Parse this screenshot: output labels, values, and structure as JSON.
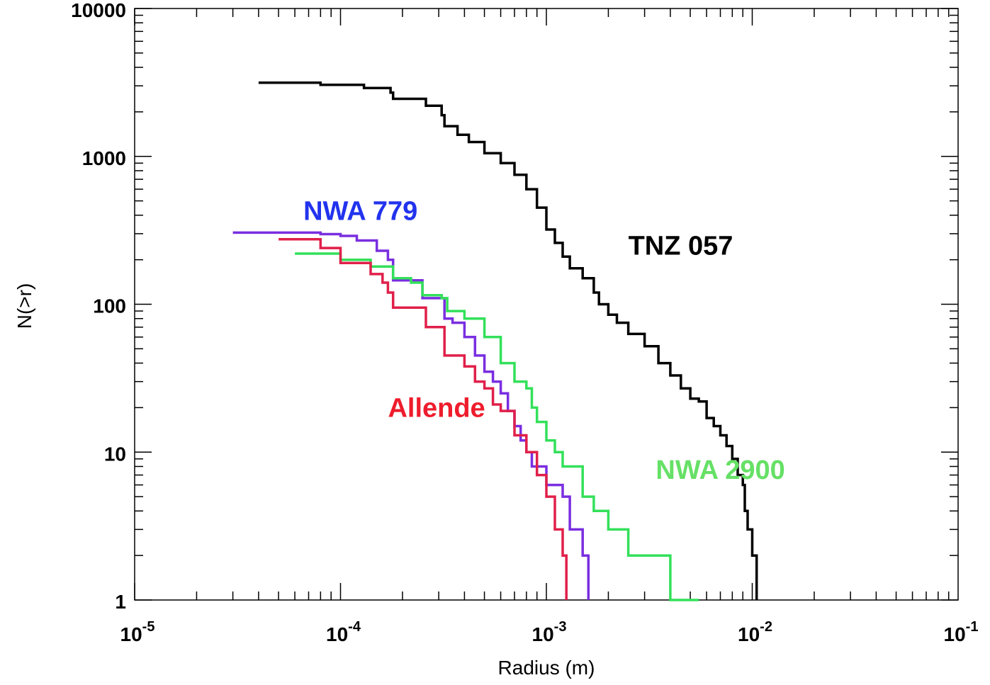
{
  "chart_data": {
    "type": "line",
    "xlabel": "Radius (m)",
    "ylabel": "N(>r)",
    "xscale": "log",
    "yscale": "log",
    "xlim": [
      1e-05,
      0.1
    ],
    "ylim": [
      1,
      10000
    ],
    "x_ticks": [
      {
        "value": 1e-05,
        "base": "10",
        "exp": "-5"
      },
      {
        "value": 0.0001,
        "base": "10",
        "exp": "-4"
      },
      {
        "value": 0.001,
        "base": "10",
        "exp": "-3"
      },
      {
        "value": 0.01,
        "base": "10",
        "exp": "-2"
      },
      {
        "value": 0.1,
        "base": "10",
        "exp": "-1"
      }
    ],
    "y_ticks": [
      {
        "value": 1,
        "label": "1"
      },
      {
        "value": 10,
        "label": "10"
      },
      {
        "value": 100,
        "label": "100"
      },
      {
        "value": 1000,
        "label": "1000"
      },
      {
        "value": 10000,
        "label": "10000"
      }
    ],
    "grid": false,
    "series": [
      {
        "name": "TNZ 057",
        "color": "#000000",
        "points": [
          [
            4e-05,
            3150
          ],
          [
            8e-05,
            3050
          ],
          [
            0.00013,
            2900
          ],
          [
            0.000175,
            2700
          ],
          [
            0.00018,
            2450
          ],
          [
            0.00025,
            2450
          ],
          [
            0.00026,
            2200
          ],
          [
            0.00031,
            1900
          ],
          [
            0.00032,
            1600
          ],
          [
            0.00036,
            1600
          ],
          [
            0.00037,
            1400
          ],
          [
            0.00042,
            1250
          ],
          [
            0.0005,
            1050
          ],
          [
            0.0006,
            900
          ],
          [
            0.0007,
            750
          ],
          [
            0.0008,
            600
          ],
          [
            0.0009,
            450
          ],
          [
            0.001,
            320
          ],
          [
            0.0011,
            260
          ],
          [
            0.0012,
            210
          ],
          [
            0.0013,
            175
          ],
          [
            0.0015,
            150
          ],
          [
            0.0017,
            120
          ],
          [
            0.0018,
            100
          ],
          [
            0.002,
            85
          ],
          [
            0.0022,
            75
          ],
          [
            0.0025,
            63
          ],
          [
            0.003,
            52
          ],
          [
            0.0035,
            40
          ],
          [
            0.004,
            33
          ],
          [
            0.0045,
            27
          ],
          [
            0.005,
            23
          ],
          [
            0.0055,
            22
          ],
          [
            0.006,
            17
          ],
          [
            0.0065,
            15
          ],
          [
            0.007,
            13
          ],
          [
            0.0075,
            11
          ],
          [
            0.008,
            9
          ],
          [
            0.0085,
            7
          ],
          [
            0.009,
            6
          ],
          [
            0.0092,
            4
          ],
          [
            0.0095,
            3
          ],
          [
            0.01,
            2
          ],
          [
            0.0105,
            1
          ]
        ]
      },
      {
        "name": "NWA 779",
        "color": "#7a2ee0",
        "points": [
          [
            3e-05,
            305
          ],
          [
            8e-05,
            298
          ],
          [
            0.0001,
            290
          ],
          [
            0.00012,
            270
          ],
          [
            0.00015,
            230
          ],
          [
            0.00017,
            200
          ],
          [
            0.00018,
            145
          ],
          [
            0.0002,
            145
          ],
          [
            0.00025,
            110
          ],
          [
            0.0003,
            110
          ],
          [
            0.00032,
            80
          ],
          [
            0.00035,
            75
          ],
          [
            0.0004,
            60
          ],
          [
            0.00045,
            45
          ],
          [
            0.0005,
            35
          ],
          [
            0.00055,
            30
          ],
          [
            0.0006,
            25
          ],
          [
            0.00065,
            19
          ],
          [
            0.0007,
            15
          ],
          [
            0.00075,
            12
          ],
          [
            0.0008,
            10
          ],
          [
            0.00085,
            8
          ],
          [
            0.001,
            6
          ],
          [
            0.0012,
            5
          ],
          [
            0.0013,
            3
          ],
          [
            0.0015,
            2
          ],
          [
            0.0016,
            1
          ]
        ]
      },
      {
        "name": "NWA 2900",
        "color": "#33e05a",
        "points": [
          [
            6e-05,
            220
          ],
          [
            7e-05,
            220
          ],
          [
            0.0001,
            200
          ],
          [
            0.00014,
            180
          ],
          [
            0.00018,
            150
          ],
          [
            0.00022,
            140
          ],
          [
            0.00025,
            115
          ],
          [
            0.00031,
            110
          ],
          [
            0.00033,
            90
          ],
          [
            0.0004,
            80
          ],
          [
            0.0005,
            60
          ],
          [
            0.0006,
            40
          ],
          [
            0.0007,
            30
          ],
          [
            0.0008,
            27
          ],
          [
            0.00085,
            20
          ],
          [
            0.0009,
            16
          ],
          [
            0.001,
            12
          ],
          [
            0.0011,
            10
          ],
          [
            0.0012,
            8
          ],
          [
            0.0015,
            5
          ],
          [
            0.0017,
            4
          ],
          [
            0.002,
            3
          ],
          [
            0.0025,
            2
          ],
          [
            0.004,
            1
          ],
          [
            0.0055,
            1
          ]
        ]
      },
      {
        "name": "Allende",
        "color": "#e0204a",
        "points": [
          [
            5e-05,
            275
          ],
          [
            8e-05,
            240
          ],
          [
            0.0001,
            190
          ],
          [
            0.00014,
            160
          ],
          [
            0.00016,
            140
          ],
          [
            0.00017,
            120
          ],
          [
            0.00018,
            95
          ],
          [
            0.00025,
            95
          ],
          [
            0.00026,
            70
          ],
          [
            0.0003,
            70
          ],
          [
            0.00032,
            45
          ],
          [
            0.0004,
            38
          ],
          [
            0.00045,
            30
          ],
          [
            0.0005,
            27
          ],
          [
            0.00055,
            21
          ],
          [
            0.0006,
            19
          ],
          [
            0.0007,
            13
          ],
          [
            0.0008,
            10
          ],
          [
            0.0009,
            7
          ],
          [
            0.001,
            5
          ],
          [
            0.0011,
            3
          ],
          [
            0.0012,
            2
          ],
          [
            0.00125,
            1
          ]
        ]
      }
    ],
    "annotations": [
      {
        "text": "TNZ 057",
        "series": "TNZ 057",
        "x": 0.0025,
        "y": 250
      },
      {
        "text": "NWA 779",
        "series": "NWA 779",
        "x": 6.6e-05,
        "y": 430
      },
      {
        "text": "NWA 2900",
        "series": "NWA 2900",
        "x": 0.0034,
        "y": 7.6
      },
      {
        "text": "Allende",
        "series": "Allende",
        "x": 0.00017,
        "y": 20
      }
    ]
  }
}
